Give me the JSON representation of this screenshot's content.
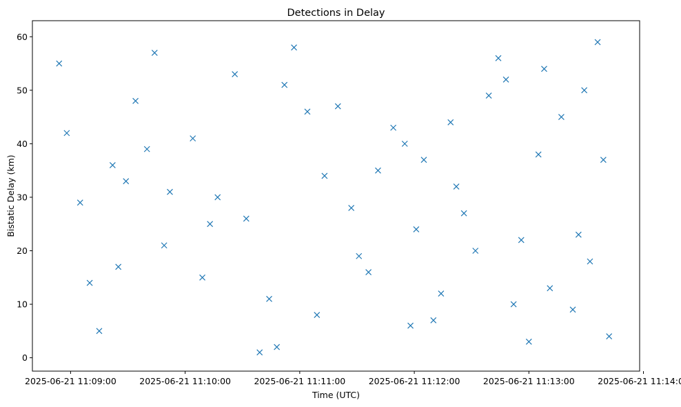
{
  "chart_data": {
    "type": "scatter",
    "title": "Detections in Delay",
    "xlabel": "Time (UTC)",
    "ylabel": "Bistatic Delay (km)",
    "xlim": [
      "2025-06-21 11:08:40",
      "2025-06-21 11:13:58"
    ],
    "ylim": [
      -2.5,
      63
    ],
    "x_ticks": [
      "2025-06-21 11:09:00",
      "2025-06-21 11:10:00",
      "2025-06-21 11:11:00",
      "2025-06-21 11:12:00",
      "2025-06-21 11:13:00",
      "2025-06-21 11:14:00"
    ],
    "y_ticks": [
      0,
      10,
      20,
      30,
      40,
      50,
      60
    ],
    "marker": "x",
    "color": "#1f77b4",
    "grid": false,
    "series": [
      {
        "x": [
          "2025-06-21 11:08:54",
          "2025-06-21 11:09:22",
          "2025-06-21 11:09:25",
          "2025-06-21 11:09:44",
          "2025-06-21 11:10:17",
          "2025-06-21 11:10:32",
          "2025-06-21 11:10:44",
          "2025-06-21 11:11:04",
          "2025-06-21 11:11:27",
          "2025-06-21 11:11:49",
          "2025-06-21 11:12:05",
          "2025-06-21 11:12:19",
          "2025-06-21 11:12:32",
          "2025-06-21 11:12:48",
          "2025-06-21 11:13:05",
          "2025-06-21 11:13:23",
          "2025-06-21 11:13:36",
          "2025-06-21 11:08:58",
          "2025-06-21 11:09:15",
          "2025-06-21 11:09:34",
          "2025-06-21 11:09:52",
          "2025-06-21 11:10:09",
          "2025-06-21 11:10:26",
          "2025-06-21 11:10:48",
          "2025-06-21 11:11:13",
          "2025-06-21 11:11:31",
          "2025-06-21 11:11:55",
          "2025-06-21 11:12:10",
          "2025-06-21 11:12:26",
          "2025-06-21 11:12:39",
          "2025-06-21 11:12:56",
          "2025-06-21 11:13:11",
          "2025-06-21 11:13:29",
          "2025-06-21 11:13:42",
          "2025-06-21 11:09:05",
          "2025-06-21 11:09:29",
          "2025-06-21 11:09:49",
          "2025-06-21 11:10:04",
          "2025-06-21 11:10:39",
          "2025-06-21 11:10:57",
          "2025-06-21 11:11:20",
          "2025-06-21 11:11:41",
          "2025-06-21 11:12:01",
          "2025-06-21 11:12:14",
          "2025-06-21 11:12:44",
          "2025-06-21 11:13:00",
          "2025-06-21 11:13:17",
          "2025-06-21 11:13:32",
          "2025-06-21 11:09:10",
          "2025-06-21 11:09:40",
          "2025-06-21 11:10:13",
          "2025-06-21 11:10:52",
          "2025-06-21 11:11:09",
          "2025-06-21 11:11:36",
          "2025-06-21 11:11:58",
          "2025-06-21 11:12:22",
          "2025-06-21 11:12:52",
          "2025-06-21 11:13:08",
          "2025-06-21 11:13:26",
          "2025-06-21 11:13:39"
        ],
        "y": [
          55,
          36,
          17,
          57,
          30,
          26,
          11,
          46,
          28,
          43,
          37,
          44,
          20,
          52,
          38,
          9,
          59,
          42,
          5,
          48,
          31,
          15,
          53,
          2,
          34,
          19,
          40,
          7,
          27,
          49,
          22,
          13,
          50,
          4,
          29,
          33,
          21,
          41,
          1,
          58,
          47,
          35,
          24,
          12,
          56,
          3,
          45,
          18,
          14,
          39,
          25,
          51,
          8,
          16,
          6,
          32,
          10,
          54,
          23,
          37
        ]
      }
    ]
  }
}
